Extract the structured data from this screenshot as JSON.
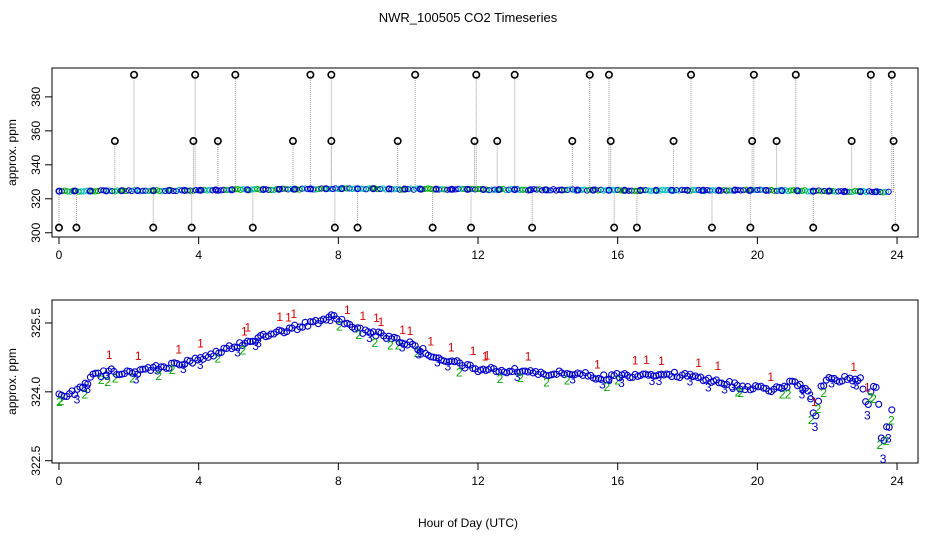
{
  "title": "NWR_100505  CO2 Timeseries",
  "xlabel": "Hour of Day (UTC)",
  "colors": {
    "series1": "#dd0000",
    "series2": "#00aa00",
    "series3": "#0000cc",
    "cyan": "#00bbbb",
    "marker": "#000000",
    "drop": "#999999"
  },
  "chart_data": [
    {
      "type": "scatter",
      "name": "top",
      "ylabel": "approx. ppm",
      "xlim": [
        -0.2,
        24.6
      ],
      "ylim": [
        297.5,
        397
      ],
      "xticks": [
        0,
        4,
        8,
        12,
        16,
        20,
        24
      ],
      "yticks": [
        300,
        320,
        340,
        360,
        380
      ],
      "ytick_labels": [
        "300",
        "320",
        "340",
        "360",
        "380"
      ],
      "baseline": [
        [
          0,
          324.5
        ],
        [
          4,
          325
        ],
        [
          8,
          326
        ],
        [
          12,
          325.5
        ],
        [
          16,
          325
        ],
        [
          20,
          325
        ],
        [
          22,
          324.5
        ],
        [
          23.8,
          324
        ]
      ],
      "spikes_high": [
        2.15,
        3.9,
        5.05,
        7.2,
        7.8,
        10.2,
        11.95,
        13.05,
        15.2,
        15.75,
        18.1,
        19.9,
        21.1,
        23.25,
        23.85
      ],
      "spikes_mid": [
        1.6,
        3.85,
        4.55,
        6.7,
        7.8,
        9.7,
        11.9,
        12.55,
        14.7,
        15.8,
        17.6,
        19.85,
        20.55,
        22.7,
        23.9
      ],
      "spikes_low": [
        0.5,
        2.7,
        3.8,
        5.55,
        7.9,
        8.55,
        10.7,
        11.8,
        13.55,
        15.9,
        16.55,
        18.7,
        19.8,
        21.6,
        23.95
      ],
      "high_value": 393,
      "mid_value": 354,
      "low_value": 303
    },
    {
      "type": "scatter",
      "name": "bottom",
      "ylabel": "approx. ppm",
      "xlim": [
        -0.2,
        24.6
      ],
      "ylim": [
        322.45,
        326.0
      ],
      "xticks": [
        0,
        4,
        8,
        12,
        16,
        20,
        24
      ],
      "yticks": [
        322.5,
        324.0,
        325.5
      ],
      "ytick_labels": [
        "322.5",
        "324.0",
        "325.5"
      ],
      "series_labels": [
        "1",
        "2",
        "3"
      ],
      "trend": [
        [
          0,
          323.9
        ],
        [
          0.5,
          324.0
        ],
        [
          1.0,
          324.35
        ],
        [
          1.5,
          324.45
        ],
        [
          2,
          324.4
        ],
        [
          3,
          324.55
        ],
        [
          4,
          324.7
        ],
        [
          5,
          325.0
        ],
        [
          6,
          325.25
        ],
        [
          7,
          325.45
        ],
        [
          7.9,
          325.65
        ],
        [
          8.5,
          325.35
        ],
        [
          9.5,
          325.2
        ],
        [
          10,
          325.05
        ],
        [
          11,
          324.7
        ],
        [
          12,
          324.5
        ],
        [
          13,
          324.45
        ],
        [
          14,
          324.4
        ],
        [
          15,
          324.4
        ],
        [
          15.5,
          324.3
        ],
        [
          16,
          324.35
        ],
        [
          17,
          324.4
        ],
        [
          18,
          324.35
        ],
        [
          19,
          324.2
        ],
        [
          19.6,
          324.1
        ],
        [
          20,
          324.1
        ],
        [
          20.5,
          324.05
        ],
        [
          21,
          324.2
        ],
        [
          21.5,
          324.0
        ],
        [
          22,
          324.25
        ],
        [
          23,
          324.3
        ],
        [
          23.5,
          324.2
        ],
        [
          23.9,
          323.95
        ]
      ],
      "dips": [
        [
          21.65,
          323.45
        ],
        [
          23.15,
          323.7
        ],
        [
          23.6,
          322.75
        ],
        [
          23.75,
          323.2
        ]
      ]
    }
  ]
}
